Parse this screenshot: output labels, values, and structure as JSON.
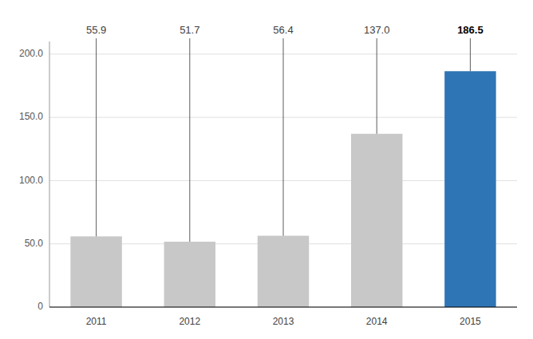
{
  "chart_data": {
    "type": "bar",
    "categories": [
      "2011",
      "2012",
      "2013",
      "2014",
      "2015"
    ],
    "values": [
      55.9,
      51.7,
      56.4,
      137.0,
      186.5
    ],
    "value_labels": [
      "55.9",
      "51.7",
      "56.4",
      "137.0",
      "186.5"
    ],
    "colors": [
      "#c8c8c8",
      "#c8c8c8",
      "#c8c8c8",
      "#c8c8c8",
      "#2e75b6"
    ],
    "ylim": [
      0,
      210
    ],
    "yticks": [
      0,
      {
        "value": 50.0,
        "label": "50.0"
      },
      {
        "value": 100.0,
        "label": "100.0"
      },
      {
        "value": 150.0,
        "label": "150.0"
      },
      {
        "value": 200.0,
        "label": "200.0"
      }
    ],
    "grid": true,
    "data_labels": true
  }
}
